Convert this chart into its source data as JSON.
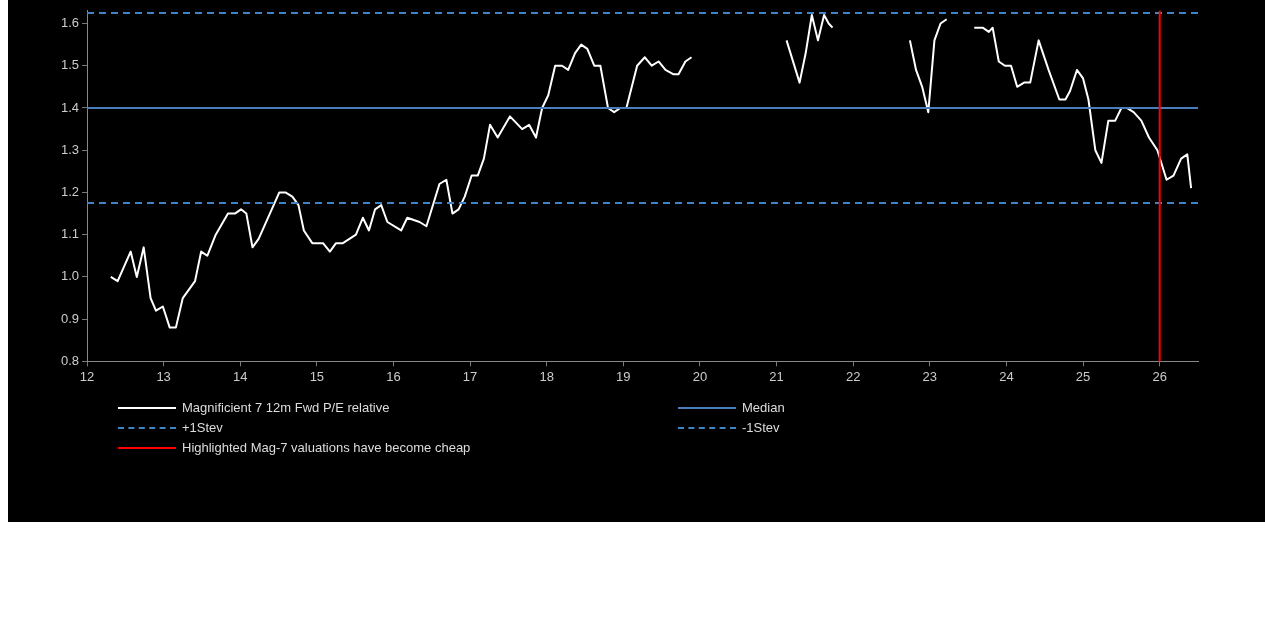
{
  "chart_data": {
    "type": "line",
    "xlim": [
      12,
      26.5
    ],
    "ylim": [
      0.8,
      1.63
    ],
    "xticks": [
      12,
      13,
      14,
      15,
      16,
      17,
      18,
      19,
      20,
      21,
      22,
      23,
      24,
      25,
      26
    ],
    "yticks": [
      {
        "value": 0.8,
        "label": "0.8"
      },
      {
        "value": 0.9,
        "label": "0.9"
      },
      {
        "value": 1,
        "label": "1.0"
      },
      {
        "value": 1.1,
        "label": "1.1"
      },
      {
        "value": 1.2,
        "label": "1.2"
      },
      {
        "value": 1.3,
        "label": "1.3"
      },
      {
        "value": 1.4,
        "label": "1.4"
      },
      {
        "value": 1.5,
        "label": "1.5"
      },
      {
        "value": 1.6,
        "label": "1.6"
      }
    ],
    "grid": false,
    "legend": "bottom",
    "marker": "none",
    "line_style": "solid",
    "series": [
      {
        "name": "Magnificient 7 12m Fwd P/E relative",
        "color": "#ffffff",
        "x": [
          12.31,
          12.4,
          12.57,
          12.65,
          12.74,
          12.83,
          12.9,
          12.99,
          13.08,
          13.16,
          13.25,
          13.41,
          13.49,
          13.57,
          13.68,
          13.84,
          13.93,
          14.01,
          14.08,
          14.16,
          14.24,
          14.51,
          14.59,
          14.68,
          14.76,
          14.83,
          14.94,
          15.08,
          15.17,
          15.25,
          15.34,
          15.51,
          15.6,
          15.68,
          15.76,
          15.84,
          15.92,
          16.1,
          16.18,
          16.34,
          16.43,
          16.6,
          16.69,
          16.77,
          16.85,
          16.93,
          17.02,
          17.1,
          17.18,
          17.26,
          17.36,
          17.52,
          17.68,
          17.77,
          17.86,
          17.94,
          18.02,
          18.11,
          18.2,
          18.28,
          18.37,
          18.45,
          18.53,
          18.62,
          18.7,
          18.8,
          18.88,
          18.96,
          19.04,
          19.18,
          19.28,
          19.37,
          19.46,
          19.55,
          19.65,
          19.72,
          19.81,
          19.89,
          20.1,
          21.13,
          21.3,
          21.38,
          21.46,
          21.54,
          21.62,
          21.68,
          21.73,
          22.0,
          22.74,
          22.82,
          22.9,
          22.98,
          23.06,
          23.14,
          23.22,
          23.4,
          23.58,
          23.69,
          23.77,
          23.82,
          23.9,
          23.98,
          24.06,
          24.14,
          24.23,
          24.31,
          24.42,
          24.55,
          24.69,
          24.77,
          24.83,
          24.92,
          25.0,
          25.07,
          25.16,
          25.24,
          25.33,
          25.42,
          25.5,
          25.57,
          25.66,
          25.76,
          25.86,
          25.97,
          26.09,
          26.18,
          26.28,
          26.36,
          26.41
        ],
        "values": [
          1.0,
          0.99,
          1.06,
          1.0,
          1.07,
          0.95,
          0.92,
          0.93,
          0.88,
          0.88,
          0.95,
          0.99,
          1.06,
          1.05,
          1.1,
          1.15,
          1.15,
          1.16,
          1.15,
          1.07,
          1.09,
          1.2,
          1.2,
          1.19,
          1.17,
          1.11,
          1.08,
          1.08,
          1.06,
          1.08,
          1.08,
          1.1,
          1.14,
          1.11,
          1.16,
          1.17,
          1.13,
          1.11,
          1.14,
          1.13,
          1.12,
          1.22,
          1.23,
          1.15,
          1.16,
          1.19,
          1.24,
          1.24,
          1.28,
          1.36,
          1.33,
          1.38,
          1.35,
          1.36,
          1.33,
          1.4,
          1.43,
          1.5,
          1.5,
          1.49,
          1.53,
          1.55,
          1.54,
          1.5,
          1.5,
          1.4,
          1.39,
          1.4,
          1.4,
          1.5,
          1.52,
          1.5,
          1.51,
          1.49,
          1.48,
          1.48,
          1.51,
          1.52,
          null,
          1.56,
          1.46,
          1.53,
          1.62,
          1.56,
          1.62,
          1.6,
          1.59,
          null,
          1.56,
          1.49,
          1.45,
          1.39,
          1.56,
          1.6,
          1.61,
          null,
          1.59,
          1.59,
          1.58,
          1.59,
          1.51,
          1.5,
          1.5,
          1.45,
          1.46,
          1.46,
          1.56,
          1.49,
          1.42,
          1.42,
          1.44,
          1.49,
          1.47,
          1.42,
          1.3,
          1.27,
          1.37,
          1.37,
          1.4,
          1.4,
          1.39,
          1.37,
          1.33,
          1.3,
          1.23,
          1.24,
          1.28,
          1.29,
          1.21
        ]
      }
    ],
    "ref_lines": [
      {
        "axis": "y",
        "value": 1.4,
        "label": "Median",
        "color": "#4a7ebb",
        "line_style": "solid"
      },
      {
        "axis": "y",
        "value": 1.625,
        "label": "+1Stev",
        "color": "#3f85c6",
        "line_style": "dashed"
      },
      {
        "axis": "y",
        "value": 1.175,
        "label": "-1Stev",
        "color": "#3f85c6",
        "line_style": "dashed"
      },
      {
        "axis": "x",
        "value": 26,
        "label": "Highlighted Mag-7 valuations have become cheap",
        "color": "#ff0000",
        "line_style": "solid"
      }
    ]
  }
}
